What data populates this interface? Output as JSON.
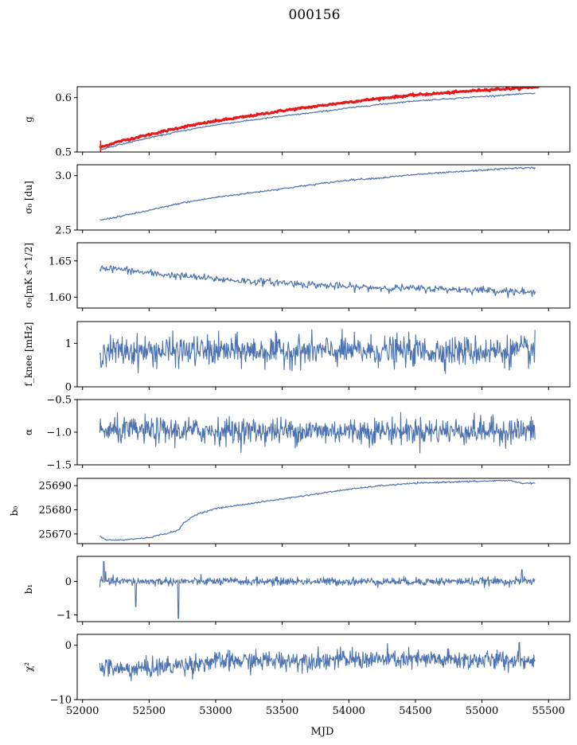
{
  "figure": {
    "title": "000156",
    "xlabel": "MJD"
  },
  "chart_data": {
    "type": "line",
    "xlim": [
      51960,
      55660
    ],
    "xticks": [
      52000,
      52500,
      53000,
      53500,
      54000,
      54500,
      55000,
      55500
    ],
    "x_range": [
      52130,
      55400
    ],
    "panels": [
      {
        "id": "g",
        "ylabel": "g",
        "ylim": [
          0.5,
          0.62
        ],
        "yticks": [
          0.5,
          0.6
        ],
        "ytick_labels": [
          "0.5",
          "0.6"
        ],
        "series": [
          {
            "color": "#e41a1c",
            "width": 3,
            "kind": "smooth",
            "points": [
              [
                52130,
                0.508
              ],
              [
                52250,
                0.518
              ],
              [
                52500,
                0.532
              ],
              [
                52750,
                0.546
              ],
              [
                53000,
                0.557
              ],
              [
                53250,
                0.566
              ],
              [
                53500,
                0.576
              ],
              [
                53750,
                0.584
              ],
              [
                54000,
                0.592
              ],
              [
                54250,
                0.599
              ],
              [
                54500,
                0.605
              ],
              [
                54750,
                0.609
              ],
              [
                55000,
                0.614
              ],
              [
                55250,
                0.617
              ],
              [
                55430,
                0.62
              ]
            ],
            "noise": 0.001
          },
          {
            "color": "#4c72b0",
            "width": 1.2,
            "kind": "smooth",
            "points": [
              [
                52130,
                0.504
              ],
              [
                52250,
                0.512
              ],
              [
                52500,
                0.526
              ],
              [
                52750,
                0.539
              ],
              [
                53000,
                0.55
              ],
              [
                53250,
                0.558
              ],
              [
                53500,
                0.566
              ],
              [
                53750,
                0.573
              ],
              [
                54000,
                0.581
              ],
              [
                54250,
                0.588
              ],
              [
                54500,
                0.594
              ],
              [
                54750,
                0.598
              ],
              [
                55000,
                0.602
              ],
              [
                55250,
                0.606
              ],
              [
                55400,
                0.608
              ]
            ],
            "noise": 0.0006
          }
        ]
      },
      {
        "id": "sigma0_du",
        "ylabel": "σ₀ [du]",
        "ylim": [
          2.5,
          3.1
        ],
        "yticks": [
          2.5,
          3.0
        ],
        "ytick_labels": [
          "2.5",
          "3.0"
        ],
        "series": [
          {
            "color": "#4c72b0",
            "width": 1.2,
            "kind": "smooth",
            "points": [
              [
                52130,
                2.59
              ],
              [
                52300,
                2.63
              ],
              [
                52500,
                2.68
              ],
              [
                52750,
                2.75
              ],
              [
                53000,
                2.8
              ],
              [
                53250,
                2.84
              ],
              [
                53500,
                2.88
              ],
              [
                53750,
                2.92
              ],
              [
                54000,
                2.96
              ],
              [
                54250,
                2.98
              ],
              [
                54500,
                3.01
              ],
              [
                54750,
                3.03
              ],
              [
                55000,
                3.05
              ],
              [
                55250,
                3.07
              ],
              [
                55400,
                3.07
              ]
            ],
            "noise": 0.004
          }
        ]
      },
      {
        "id": "sigma0_mk",
        "ylabel": "σ₀[mK s^1/2]",
        "ylim": [
          1.585,
          1.675
        ],
        "yticks": [
          1.6,
          1.65
        ],
        "ytick_labels": [
          "1.60",
          "1.65"
        ],
        "series": [
          {
            "color": "#4c72b0",
            "width": 1.2,
            "kind": "smooth",
            "points": [
              [
                52130,
                1.641
              ],
              [
                52300,
                1.638
              ],
              [
                52500,
                1.633
              ],
              [
                52750,
                1.629
              ],
              [
                53000,
                1.625
              ],
              [
                53250,
                1.622
              ],
              [
                53500,
                1.62
              ],
              [
                53750,
                1.617
              ],
              [
                54000,
                1.614
              ],
              [
                54250,
                1.613
              ],
              [
                54500,
                1.612
              ],
              [
                54750,
                1.611
              ],
              [
                55000,
                1.61
              ],
              [
                55250,
                1.608
              ],
              [
                55400,
                1.605
              ]
            ],
            "noise": 0.0025
          }
        ]
      },
      {
        "id": "fknee",
        "ylabel": "f_knee [mHz]",
        "ylim": [
          0,
          1.5
        ],
        "yticks": [
          0,
          1
        ],
        "ytick_labels": [
          "0",
          "1"
        ],
        "series": [
          {
            "color": "#4c72b0",
            "width": 1.1,
            "kind": "noisy",
            "mean": 0.82,
            "noise": 0.17
          }
        ]
      },
      {
        "id": "alpha",
        "ylabel": "α",
        "ylim": [
          -1.5,
          -0.5
        ],
        "yticks": [
          -1.5,
          -1.0,
          -0.5
        ],
        "ytick_labels": [
          "−1.5",
          "−1.0",
          "−0.5"
        ],
        "series": [
          {
            "color": "#4c72b0",
            "width": 1.1,
            "kind": "noisy",
            "mean": -0.98,
            "noise": 0.1
          }
        ]
      },
      {
        "id": "b0",
        "ylabel": "b₀",
        "ylim": [
          25666,
          25693
        ],
        "yticks": [
          25670,
          25680,
          25690
        ],
        "ytick_labels": [
          "25670",
          "25680",
          "25690"
        ],
        "series": [
          {
            "color": "#4c72b0",
            "width": 1.2,
            "kind": "smooth",
            "points": [
              [
                52130,
                25669
              ],
              [
                52180,
                25667.5
              ],
              [
                52300,
                25667.5
              ],
              [
                52500,
                25668.5
              ],
              [
                52650,
                25670.5
              ],
              [
                52720,
                25671.5
              ],
              [
                52760,
                25674.5
              ],
              [
                52850,
                25678
              ],
              [
                53000,
                25680.5
              ],
              [
                53250,
                25682.5
              ],
              [
                53500,
                25684.5
              ],
              [
                53750,
                25686.5
              ],
              [
                54000,
                25688.5
              ],
              [
                54250,
                25690
              ],
              [
                54500,
                25691
              ],
              [
                54750,
                25691.5
              ],
              [
                55000,
                25691.8
              ],
              [
                55200,
                25692.2
              ],
              [
                55300,
                25691
              ],
              [
                55400,
                25691
              ]
            ],
            "noise": 0.15
          }
        ]
      },
      {
        "id": "b1",
        "ylabel": "b₁",
        "ylim": [
          -1.2,
          0.75
        ],
        "yticks": [
          -1,
          0
        ],
        "ytick_labels": [
          "−1",
          "0"
        ],
        "series": [
          {
            "color": "#4c72b0",
            "width": 1.1,
            "kind": "noisy",
            "mean": 0.0,
            "noise": 0.06,
            "spikes": [
              [
                52160,
                0.6
              ],
              [
                52175,
                0.3
              ],
              [
                52400,
                -0.75
              ],
              [
                52720,
                -1.1
              ],
              [
                55300,
                0.35
              ]
            ]
          }
        ]
      },
      {
        "id": "chi2",
        "ylabel": "χ²",
        "ylim": [
          -10,
          2
        ],
        "yticks": [
          -10,
          0
        ],
        "ytick_labels": [
          "−10",
          "0"
        ],
        "series": [
          {
            "color": "#4c72b0",
            "width": 1.1,
            "kind": "noisy",
            "mean": -3.2,
            "noise": 0.9,
            "drift": [
              [
                52130,
                -3.8
              ],
              [
                52300,
                -4.5
              ],
              [
                52600,
                -4.0
              ],
              [
                53000,
                -3.0
              ],
              [
                54000,
                -2.6
              ],
              [
                55400,
                -2.8
              ]
            ],
            "spikes": [
              [
                55280,
                0.5
              ]
            ]
          }
        ]
      }
    ]
  }
}
